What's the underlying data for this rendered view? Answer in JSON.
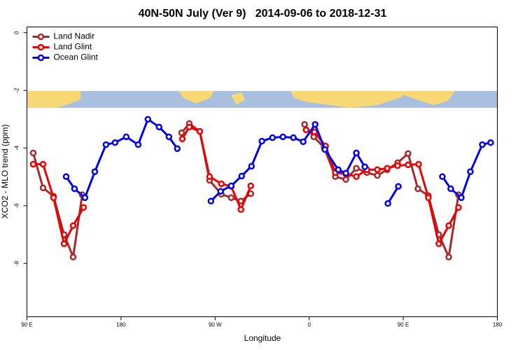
{
  "chart_data": {
    "type": "line",
    "title": "40N-50N July (Ver 9)   2014-09-06 to 2018-12-31",
    "x_label": "Longitude",
    "y_label": "XCO2 - MLO trend (ppm)",
    "xlim": [
      90,
      540
    ],
    "ylim": [
      -9.85,
      0.2
    ],
    "xticks": [
      {
        "value": 90,
        "label": "90 E"
      },
      180,
      {
        "value": 270,
        "label": "90 W"
      },
      {
        "value": 360,
        "label": "0"
      },
      {
        "value": 450,
        "label": "90 E"
      },
      {
        "value": 540,
        "label": "180"
      }
    ],
    "yticks": [
      0,
      -2,
      -4,
      -6,
      -8
    ],
    "legend": "top-left",
    "series": [
      {
        "name": "Land Nadir",
        "color": "#a52a2a",
        "x": [
          96,
          105.4,
          115.4,
          125.5,
          134.2,
          142.9,
          null,
          237.9,
          245.3,
          255.3,
          264.7,
          276,
          285.4,
          294.7,
          304.1,
          null,
          355.6,
          364.3,
          374.3,
          385,
          395.1,
          405.1,
          415.2,
          425.2,
          434.6,
          444.6,
          454.6,
          464,
          474,
          484,
          493.5,
          502.8
        ],
        "values": [
          -4.17,
          -5.38,
          -5.67,
          -7.0,
          -7.78,
          -5.62,
          null,
          -3.47,
          -3.15,
          -3.42,
          -5.12,
          -5.6,
          -5.72,
          -5.84,
          -5.58,
          null,
          -3.18,
          -3.61,
          -3.98,
          -4.99,
          -5.09,
          -4.7,
          -4.85,
          -4.95,
          -4.75,
          -4.51,
          -4.19,
          -5.41,
          -5.65,
          -7.0,
          -7.78,
          -5.62
        ]
      },
      {
        "name": "Land Glint",
        "color": "#ee0000",
        "x": [
          96,
          105.4,
          115.4,
          125.5,
          134.2,
          144.2,
          null,
          238.6,
          245.3,
          255.3,
          264.7,
          276,
          285.4,
          294.7,
          304.1,
          null,
          357,
          365,
          375.7,
          385,
          395.1,
          405.1,
          415.2,
          425.2,
          434.6,
          444.6,
          454.6,
          464.7,
          474,
          484,
          493.5,
          502.8
        ],
        "values": [
          -4.56,
          -4.56,
          -5.72,
          -7.32,
          -6.69,
          -6.06,
          null,
          -3.68,
          -3.27,
          -3.42,
          -4.99,
          -5.24,
          -5.33,
          -6.13,
          -5.31,
          null,
          -3.37,
          -3.44,
          -3.93,
          -4.85,
          -4.9,
          -4.99,
          -4.75,
          -4.75,
          -4.7,
          -4.61,
          -4.58,
          -4.56,
          -5.72,
          -7.32,
          -6.69,
          -6.06
        ]
      },
      {
        "name": "Ocean Glint",
        "color": "#0000ee",
        "x": [
          127.5,
          135.5,
          145.5,
          154.9,
          165.6,
          174.3,
          185,
          196.4,
          205.7,
          216.4,
          225.8,
          233.8,
          null,
          266,
          275.3,
          285.4,
          295.4,
          304.8,
          314.8,
          324.9,
          334.9,
          344.9,
          354.3,
          365.7,
          375,
          387.8,
          395.1,
          405.1,
          413.2,
          null,
          435.3,
          445.3,
          null,
          487.4,
          495.4,
          505.5,
          514.2,
          525.6,
          533.6
        ],
        "values": [
          -4.99,
          -5.41,
          -5.72,
          -4.82,
          -3.88,
          -3.81,
          -3.61,
          -3.88,
          -3.0,
          -3.27,
          -3.61,
          -4.02,
          null,
          -5.84,
          -5.5,
          -5.31,
          -4.97,
          -4.63,
          -3.76,
          -3.64,
          -3.61,
          -3.64,
          -3.78,
          -3.18,
          -4.05,
          -4.75,
          -4.87,
          -4.17,
          -4.65,
          null,
          -5.92,
          -5.33,
          null,
          -4.99,
          -5.41,
          -5.72,
          -4.82,
          -3.88,
          -3.81
        ]
      }
    ]
  }
}
